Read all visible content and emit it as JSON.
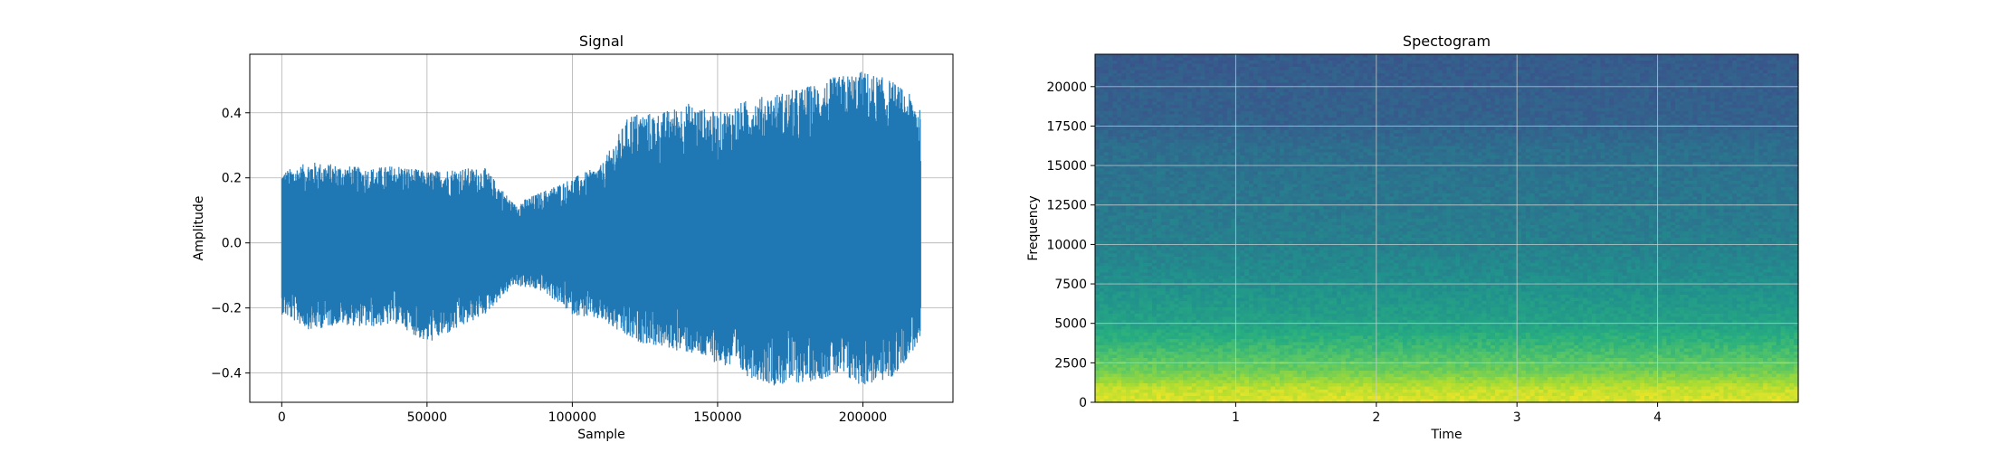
{
  "chart_data": [
    {
      "type": "line",
      "title": "Signal",
      "xlabel": "Sample",
      "ylabel": "Amplitude",
      "xlim": [
        -11000,
        231000
      ],
      "ylim": [
        -0.49,
        0.58
      ],
      "xticks": [
        0,
        50000,
        100000,
        150000,
        200000
      ],
      "xtick_labels": [
        "0",
        "50000",
        "100000",
        "150000",
        "200000"
      ],
      "yticks": [
        -0.4,
        -0.2,
        0.0,
        0.2,
        0.4
      ],
      "ytick_labels": [
        "−0.4",
        "−0.2",
        "0.0",
        "0.2",
        "0.4"
      ],
      "grid": true,
      "color": "#1f77b4",
      "series": [
        {
          "x": [
            0,
            10000,
            20000,
            30000,
            40000,
            50000,
            60000,
            70000,
            80000,
            90000,
            100000,
            110000,
            120000,
            130000,
            140000,
            150000,
            160000,
            170000,
            180000,
            190000,
            200000,
            210000,
            220000
          ],
          "y_max": [
            0.22,
            0.25,
            0.24,
            0.23,
            0.24,
            0.22,
            0.23,
            0.23,
            0.12,
            0.16,
            0.2,
            0.24,
            0.4,
            0.4,
            0.43,
            0.4,
            0.44,
            0.46,
            0.48,
            0.51,
            0.53,
            0.5,
            0.43
          ],
          "y_min": [
            -0.22,
            -0.27,
            -0.25,
            -0.26,
            -0.25,
            -0.31,
            -0.27,
            -0.22,
            -0.13,
            -0.15,
            -0.22,
            -0.24,
            -0.3,
            -0.32,
            -0.34,
            -0.37,
            -0.41,
            -0.44,
            -0.43,
            -0.41,
            -0.44,
            -0.42,
            -0.3
          ]
        }
      ]
    },
    {
      "type": "heatmap",
      "title": "Spectogram",
      "xlabel": "Time",
      "ylabel": "Frequency",
      "xlim": [
        0,
        5.0
      ],
      "ylim": [
        0,
        22050
      ],
      "xticks": [
        1,
        2,
        3,
        4
      ],
      "xtick_labels": [
        "1",
        "2",
        "3",
        "4"
      ],
      "yticks": [
        0,
        2500,
        5000,
        7500,
        10000,
        12500,
        15000,
        17500,
        20000
      ],
      "ytick_labels": [
        "0",
        "2500",
        "5000",
        "7500",
        "10000",
        "12500",
        "15000",
        "17500",
        "20000"
      ],
      "grid": true,
      "colormap": "viridis",
      "frequency_profile": [
        {
          "frequency": 0,
          "level": 0.95
        },
        {
          "frequency": 800,
          "level": 0.92
        },
        {
          "frequency": 2000,
          "level": 0.78
        },
        {
          "frequency": 3500,
          "level": 0.68
        },
        {
          "frequency": 5000,
          "level": 0.58
        },
        {
          "frequency": 7500,
          "level": 0.5
        },
        {
          "frequency": 10000,
          "level": 0.44
        },
        {
          "frequency": 13000,
          "level": 0.4
        },
        {
          "frequency": 16000,
          "level": 0.37
        },
        {
          "frequency": 17500,
          "level": 0.32
        },
        {
          "frequency": 22050,
          "level": 0.29
        }
      ]
    }
  ]
}
